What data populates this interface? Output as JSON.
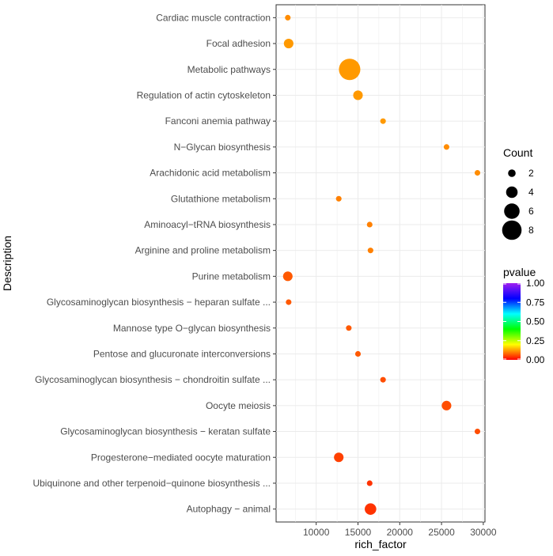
{
  "chart_data": {
    "type": "scatter",
    "title": "",
    "xlabel": "rich_factor",
    "ylabel": "Description",
    "xlim": [
      5200,
      30200
    ],
    "x_ticks": [
      10000,
      15000,
      20000,
      25000,
      30000
    ],
    "x_tick_labels": [
      "10000",
      "15000",
      "20000",
      "25000",
      "30000"
    ],
    "grid": true,
    "points": [
      {
        "description": "Cardiac muscle contraction",
        "rich_factor": 6600,
        "count": 1,
        "pvalue": 0.11
      },
      {
        "description": "Focal adhesion",
        "rich_factor": 6700,
        "count": 3,
        "pvalue": 0.12
      },
      {
        "description": "Metabolic pathways",
        "rich_factor": 14000,
        "count": 9,
        "pvalue": 0.12
      },
      {
        "description": "Regulation of actin cytoskeleton",
        "rich_factor": 15000,
        "count": 3,
        "pvalue": 0.12
      },
      {
        "description": "Fanconi anemia pathway",
        "rich_factor": 18000,
        "count": 1,
        "pvalue": 0.12
      },
      {
        "description": "N−Glycan biosynthesis",
        "rich_factor": 25600,
        "count": 1,
        "pvalue": 0.11
      },
      {
        "description": "Arachidonic acid metabolism",
        "rich_factor": 29300,
        "count": 1,
        "pvalue": 0.11
      },
      {
        "description": "Glutathione metabolism",
        "rich_factor": 12700,
        "count": 1,
        "pvalue": 0.1
      },
      {
        "description": "Aminoacyl−tRNA biosynthesis",
        "rich_factor": 16400,
        "count": 1,
        "pvalue": 0.1
      },
      {
        "description": "Arginine and proline metabolism",
        "rich_factor": 16500,
        "count": 1,
        "pvalue": 0.1
      },
      {
        "description": "Purine metabolism",
        "rich_factor": 6600,
        "count": 3,
        "pvalue": 0.07
      },
      {
        "description": "Glycosaminoglycan biosynthesis − heparan sulfate ...",
        "rich_factor": 6700,
        "count": 1,
        "pvalue": 0.07
      },
      {
        "description": "Mannose type O−glycan biosynthesis",
        "rich_factor": 13900,
        "count": 1,
        "pvalue": 0.07
      },
      {
        "description": "Pentose and glucuronate interconversions",
        "rich_factor": 15000,
        "count": 1,
        "pvalue": 0.07
      },
      {
        "description": "Glycosaminoglycan biosynthesis − chondroitin sulfate ...",
        "rich_factor": 18000,
        "count": 1,
        "pvalue": 0.06
      },
      {
        "description": "Oocyte meiosis",
        "rich_factor": 25600,
        "count": 3,
        "pvalue": 0.06
      },
      {
        "description": "Glycosaminoglycan biosynthesis − keratan sulfate",
        "rich_factor": 29300,
        "count": 1,
        "pvalue": 0.06
      },
      {
        "description": "Progesterone−mediated oocyte maturation",
        "rich_factor": 12700,
        "count": 3,
        "pvalue": 0.05
      },
      {
        "description": "Ubiquinone and other terpenoid−quinone biosynthesis ...",
        "rich_factor": 16400,
        "count": 1,
        "pvalue": 0.04
      },
      {
        "description": "Autophagy − animal",
        "rich_factor": 16500,
        "count": 4,
        "pvalue": 0.04
      }
    ],
    "legend_size": {
      "title": "Count",
      "values": [
        2,
        4,
        6,
        8
      ],
      "labels": [
        "2",
        "4",
        "6",
        "8"
      ]
    },
    "legend_color": {
      "title": "pvalue",
      "range": [
        0,
        1
      ],
      "breaks": [
        1.0,
        0.75,
        0.5,
        0.25,
        0.0
      ],
      "labels": [
        "1.00",
        "0.75",
        "0.50",
        "0.25",
        "0.00"
      ],
      "colors": [
        "#FF0000",
        "#FFFF00",
        "#00FF00",
        "#00FFFF",
        "#0000FF",
        "#A020F0"
      ]
    }
  }
}
